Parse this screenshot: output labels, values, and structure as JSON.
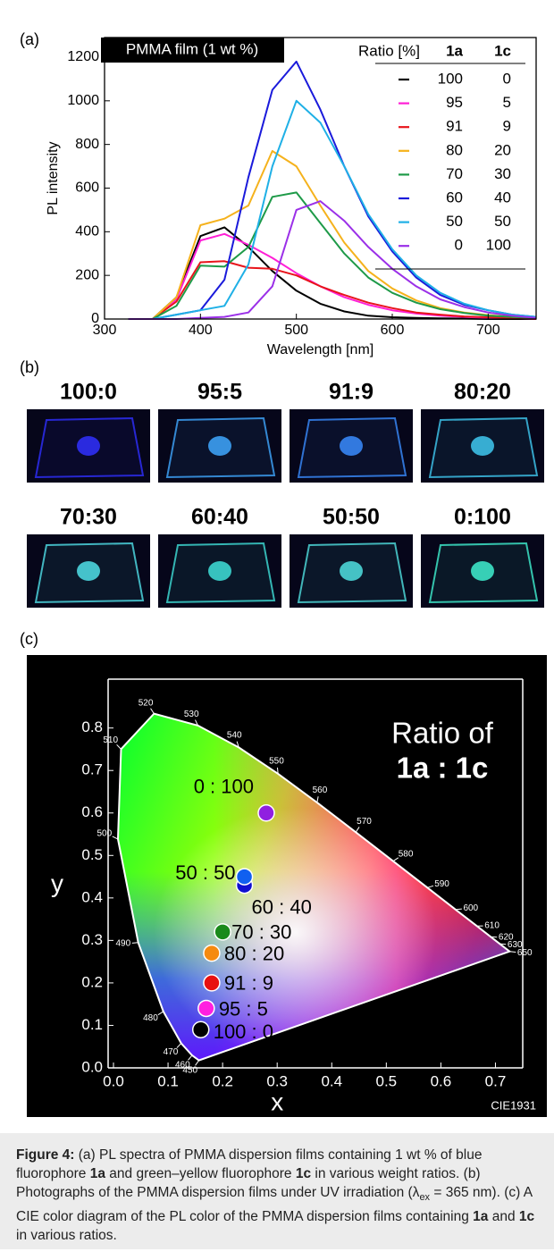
{
  "panel_labels": [
    "(a)",
    "(b)",
    "(c)"
  ],
  "chart_data": [
    {
      "type": "line",
      "annotation": "PMMA film (1 wt %)",
      "x_label": "Wavelength [nm]",
      "y_label": "PL intensity",
      "xlim": [
        300,
        750
      ],
      "ylim": [
        0,
        1290
      ],
      "xticks": [
        300,
        400,
        500,
        600,
        700
      ],
      "yticks": [
        0,
        200,
        400,
        600,
        800,
        1000,
        1200
      ],
      "grid": false,
      "legend": {
        "header": [
          "Ratio [%]",
          "1a",
          "1c"
        ],
        "rows": [
          [
            "100",
            "0"
          ],
          [
            "95",
            "5"
          ],
          [
            "91",
            "9"
          ],
          [
            "80",
            "20"
          ],
          [
            "70",
            "30"
          ],
          [
            "60",
            "40"
          ],
          [
            "50",
            "50"
          ],
          [
            "0",
            "100"
          ]
        ]
      },
      "x": [
        325,
        350,
        375,
        400,
        425,
        450,
        475,
        500,
        525,
        550,
        575,
        600,
        625,
        650,
        675,
        700,
        725,
        750
      ],
      "series": [
        {
          "color": "#000000",
          "values": [
            0,
            0,
            100,
            380,
            420,
            330,
            220,
            130,
            70,
            35,
            15,
            8,
            5,
            3,
            2,
            0,
            0,
            0
          ]
        },
        {
          "color": "#ff1fd6",
          "values": [
            0,
            0,
            90,
            360,
            390,
            340,
            280,
            210,
            150,
            100,
            65,
            40,
            25,
            15,
            10,
            5,
            3,
            0
          ]
        },
        {
          "color": "#e8141b",
          "values": [
            0,
            0,
            80,
            260,
            265,
            235,
            230,
            200,
            150,
            110,
            75,
            50,
            30,
            20,
            12,
            8,
            5,
            0
          ]
        },
        {
          "color": "#f5b21c",
          "values": [
            0,
            0,
            100,
            430,
            460,
            520,
            770,
            700,
            520,
            350,
            220,
            140,
            85,
            50,
            30,
            18,
            10,
            5
          ]
        },
        {
          "color": "#1e9a48",
          "values": [
            0,
            0,
            60,
            245,
            240,
            330,
            560,
            580,
            440,
            300,
            190,
            120,
            75,
            45,
            28,
            15,
            10,
            5
          ]
        },
        {
          "color": "#1a1adb",
          "values": [
            0,
            0,
            20,
            40,
            180,
            650,
            1050,
            1180,
            960,
            700,
            470,
            310,
            190,
            110,
            65,
            40,
            20,
            10
          ]
        },
        {
          "color": "#1fb0e6",
          "values": [
            0,
            0,
            20,
            40,
            60,
            250,
            700,
            1000,
            900,
            700,
            480,
            320,
            200,
            120,
            70,
            40,
            20,
            10
          ]
        },
        {
          "color": "#9b30e8",
          "values": [
            0,
            0,
            0,
            5,
            10,
            30,
            150,
            500,
            540,
            450,
            330,
            230,
            150,
            90,
            55,
            30,
            15,
            5
          ]
        }
      ]
    },
    {
      "type": "scatter",
      "annotation": [
        "Ratio of",
        "1a : 1c"
      ],
      "x_label": "x",
      "y_label": "y",
      "footnote": "CIE1931",
      "xlim": [
        0,
        0.75
      ],
      "ylim": [
        0,
        0.915
      ],
      "xticks": [
        {
          "value": 0,
          "label": "0.0"
        },
        0.1,
        0.2,
        0.3,
        0.4,
        0.5,
        0.6,
        0.7
      ],
      "yticks": [
        {
          "value": 0,
          "label": "0.0"
        },
        0.1,
        0.2,
        0.3,
        0.4,
        0.5,
        0.6,
        0.7,
        0.8
      ],
      "locus": {
        "wavelengths": [
          450,
          460,
          470,
          480,
          490,
          500,
          510,
          520,
          530,
          540,
          550,
          560,
          570,
          580,
          590,
          600,
          610,
          620,
          630,
          650
        ],
        "x": [
          0.1566,
          0.144,
          0.1241,
          0.0913,
          0.0454,
          0.0082,
          0.0139,
          0.0743,
          0.1547,
          0.2296,
          0.3016,
          0.3731,
          0.4441,
          0.5125,
          0.5752,
          0.627,
          0.6658,
          0.6915,
          0.7079,
          0.726
        ],
        "y": [
          0.0177,
          0.0297,
          0.0578,
          0.1327,
          0.295,
          0.5384,
          0.7502,
          0.8338,
          0.8059,
          0.7543,
          0.6923,
          0.6245,
          0.5547,
          0.4866,
          0.4242,
          0.3725,
          0.334,
          0.3083,
          0.292,
          0.274
        ]
      },
      "labels": [
        "100 : 0",
        "95 : 5",
        "91 : 9",
        "80 : 20",
        "70 : 30",
        "60 : 40",
        "50 : 50",
        "0 : 100"
      ],
      "colors": [
        "#000000",
        "#ff20e0",
        "#e81010",
        "#f58a10",
        "#1a8a1a",
        "#1010d0",
        "#1060f0",
        "#9020e0"
      ],
      "x": [
        0.16,
        0.17,
        0.18,
        0.18,
        0.2,
        0.24,
        0.24,
        0.28
      ],
      "values": [
        0.09,
        0.14,
        0.2,
        0.27,
        0.32,
        0.43,
        0.45,
        0.6
      ]
    }
  ],
  "photos": {
    "labels": [
      "100:0",
      "95:5",
      "91:9",
      "80:20",
      "70:30",
      "60:40",
      "50:50",
      "0:100"
    ]
  },
  "caption": {
    "parts": [
      "Figure 4:",
      " (a) PL spectra of PMMA dispersion films containing 1 wt % of blue fluorophore ",
      "1a",
      " and green–yellow fluorophore ",
      "1c",
      " in various weight ratios. (b) Photographs of the PMMA dispersion films under UV irradiation (λ",
      "ex",
      " = 365 nm). (c) A CIE color diagram of the PL color of the PMMA dispersion films containing ",
      "1a",
      " and ",
      "1c",
      " in various ratios."
    ]
  }
}
